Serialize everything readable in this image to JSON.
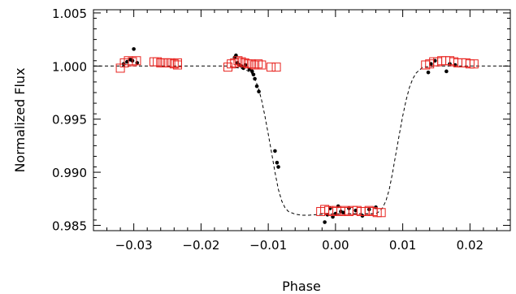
{
  "chart_data": {
    "type": "scatter",
    "title": "",
    "xlabel": "Phase",
    "ylabel": "Normalized Flux",
    "xlim": [
      -0.036,
      0.026
    ],
    "ylim": [
      0.9845,
      1.0053
    ],
    "x_ticks": [
      -0.03,
      -0.02,
      -0.01,
      0.0,
      0.01,
      0.02
    ],
    "x_tick_labels": [
      "−0.03",
      "−0.02",
      "−0.01",
      "0.00",
      "0.01",
      "0.02"
    ],
    "y_ticks": [
      0.985,
      0.99,
      0.995,
      1.0,
      1.005
    ],
    "y_tick_labels": [
      "0.985",
      "0.990",
      "0.995",
      "1.000",
      "1.005"
    ],
    "grid": false,
    "colors": {
      "model": "#000000",
      "dots": "#000000",
      "squares": "#e8231f"
    },
    "series": [
      {
        "marker": "dashed-line",
        "x": [
          -0.036,
          -0.016,
          -0.0135,
          -0.0125,
          -0.012,
          -0.0115,
          -0.011,
          -0.0105,
          -0.01,
          -0.0095,
          -0.009,
          -0.0085,
          -0.008,
          -0.0075,
          -0.007,
          -0.006,
          -0.005,
          -0.004,
          -0.003,
          -0.002,
          0.002,
          0.006,
          0.0065,
          0.007,
          0.0075,
          0.008,
          0.0085,
          0.009,
          0.0095,
          0.01,
          0.0105,
          0.011,
          0.0115,
          0.012,
          0.013,
          0.015,
          0.026
        ],
        "y": [
          1.0,
          1.0,
          0.9997,
          0.99935,
          0.9988,
          0.998,
          0.9968,
          0.9953,
          0.9936,
          0.9918,
          0.99,
          0.9884,
          0.9873,
          0.98665,
          0.9863,
          0.98605,
          0.98595,
          0.98595,
          0.986,
          0.98605,
          0.9861,
          0.9861,
          0.9863,
          0.98665,
          0.9873,
          0.9884,
          0.99,
          0.9918,
          0.9936,
          0.9953,
          0.9968,
          0.998,
          0.9988,
          0.99935,
          0.9999,
          1.0,
          1.0
        ]
      },
      {
        "marker": "dot",
        "x": [
          -0.0315,
          -0.031,
          -0.0305,
          -0.0302,
          -0.03,
          -0.0295,
          -0.015,
          -0.0148,
          -0.0146,
          -0.0143,
          -0.014,
          -0.0137,
          -0.0134,
          -0.0128,
          -0.0124,
          -0.0122,
          -0.012,
          -0.0117,
          -0.0114,
          -0.009,
          -0.0087,
          -0.0085,
          -0.0016,
          -0.0012,
          -0.0008,
          -0.0004,
          0.0,
          0.0004,
          0.0008,
          0.0012,
          0.002,
          0.003,
          0.004,
          0.005,
          0.006,
          0.0138,
          0.0142,
          0.0148,
          0.0165,
          0.017,
          0.0178
        ],
        "y": [
          1.0002,
          1.0004,
          1.0006,
          1.0005,
          1.0016,
          1.0003,
          1.0008,
          1.001,
          1.0003,
          1.0001,
          1.0,
          0.9998,
          1.0001,
          0.9997,
          0.9995,
          0.9992,
          0.9988,
          0.9981,
          0.9976,
          0.992,
          0.9909,
          0.9905,
          0.9853,
          0.986,
          0.9866,
          0.9858,
          0.9861,
          0.9868,
          0.9863,
          0.9862,
          0.9866,
          0.9864,
          0.9859,
          0.9865,
          0.9867,
          0.9994,
          1.0002,
          1.0005,
          0.9995,
          1.0002,
          1.0001
        ]
      },
      {
        "marker": "square",
        "x": [
          -0.032,
          -0.0314,
          -0.0308,
          -0.0302,
          -0.0296,
          -0.027,
          -0.0265,
          -0.026,
          -0.0255,
          -0.025,
          -0.0245,
          -0.024,
          -0.0235,
          -0.0235,
          -0.016,
          -0.0155,
          -0.015,
          -0.0145,
          -0.014,
          -0.0135,
          -0.013,
          -0.0125,
          -0.012,
          -0.0115,
          -0.011,
          -0.0096,
          -0.0088,
          -0.0022,
          -0.0016,
          -0.001,
          -0.0004,
          0.0002,
          0.0008,
          0.0014,
          0.002,
          0.0026,
          0.0032,
          0.0038,
          0.0044,
          0.005,
          0.0056,
          0.0062,
          0.0068,
          0.0134,
          0.014,
          0.0146,
          0.0152,
          0.0158,
          0.0164,
          0.017,
          0.0176,
          0.0182,
          0.0188,
          0.0194,
          0.02,
          0.0206
        ],
        "y": [
          0.9998,
          1.0003,
          1.0005,
          1.0004,
          1.0005,
          1.0004,
          1.0004,
          1.0003,
          1.0003,
          1.0003,
          1.0003,
          1.0002,
          1.0001,
          1.0003,
          0.9999,
          1.0002,
          1.0003,
          1.0005,
          1.0004,
          1.0003,
          1.0002,
          1.0002,
          1.0001,
          1.0002,
          1.0001,
          0.9999,
          0.9999,
          0.9863,
          0.9865,
          0.9864,
          0.9863,
          0.9864,
          0.9863,
          0.9864,
          0.9863,
          0.9864,
          0.9864,
          0.9863,
          0.9863,
          0.9864,
          0.9863,
          0.9862,
          0.9862,
          1.0001,
          1.0002,
          1.0004,
          1.0004,
          1.0005,
          1.0005,
          1.0005,
          1.0004,
          1.0003,
          1.0003,
          1.0003,
          1.0002,
          1.0002
        ]
      }
    ]
  }
}
